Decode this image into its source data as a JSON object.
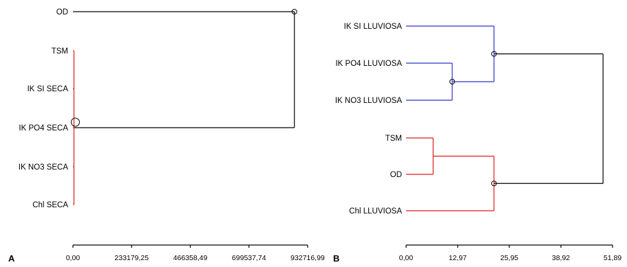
{
  "colors": {
    "cluster_blue": "#2b33c9",
    "cluster_red": "#e01b1b",
    "link_black": "#000000"
  },
  "chart_data": [
    {
      "type": "dendrogram",
      "panel": "A",
      "leaves": [
        "OD",
        "TSM",
        "IK SI SECA",
        "IK PO4 SECA",
        "IK NO3 SECA",
        "Chl SECA"
      ],
      "tick_labels": [
        "0,00",
        "233179,25",
        "466358,49",
        "699537,74",
        "932716,99"
      ],
      "xlim": [
        0,
        932716.99
      ],
      "merges": [
        {
          "members": [
            "TSM",
            "IK SI SECA",
            "IK PO4 SECA",
            "IK NO3 SECA",
            "Chl SECA"
          ],
          "height": 4000,
          "color": "red"
        },
        {
          "members": [
            "OD",
            "TSM",
            "IK SI SECA",
            "IK PO4 SECA",
            "IK NO3 SECA",
            "Chl SECA"
          ],
          "height": 880000,
          "color": "black"
        }
      ]
    },
    {
      "type": "dendrogram",
      "panel": "B",
      "leaves": [
        "IK SI LLUVIOSA",
        "IK PO4 LLUVIOSA",
        "IK NO3 LLUVIOSA",
        "TSM",
        "OD",
        "Chl LLUVIOSA"
      ],
      "tick_labels": [
        "0,00",
        "12,97",
        "25,95",
        "38,92",
        "51,89"
      ],
      "xlim": [
        0,
        51.89
      ],
      "merges": [
        {
          "members": [
            "IK PO4 LLUVIOSA",
            "IK NO3 LLUVIOSA"
          ],
          "height": 11.6,
          "color": "blue"
        },
        {
          "members": [
            "IK SI LLUVIOSA",
            "IK PO4 LLUVIOSA",
            "IK NO3 LLUVIOSA"
          ],
          "height": 22.1,
          "color": "blue"
        },
        {
          "members": [
            "TSM",
            "OD"
          ],
          "height": 6.8,
          "color": "red"
        },
        {
          "members": [
            "TSM",
            "OD",
            "Chl LLUVIOSA"
          ],
          "height": 22.1,
          "color": "red"
        },
        {
          "members": [
            "IK SI LLUVIOSA",
            "IK PO4 LLUVIOSA",
            "IK NO3 LLUVIOSA",
            "TSM",
            "OD",
            "Chl LLUVIOSA"
          ],
          "height": 49.5,
          "color": "black"
        }
      ]
    }
  ]
}
